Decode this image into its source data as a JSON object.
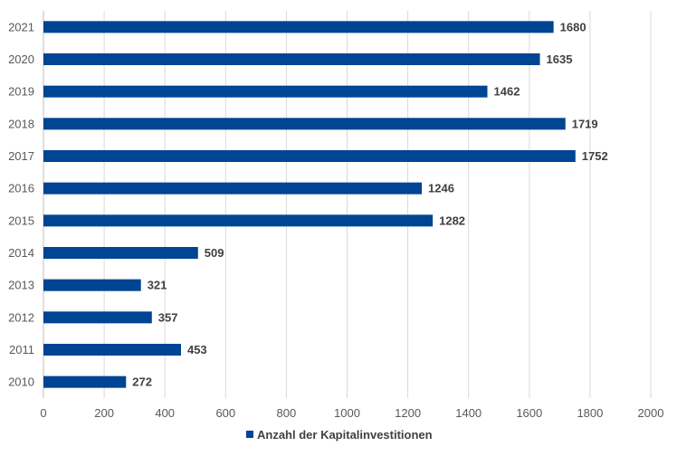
{
  "chart_data": {
    "type": "bar",
    "orientation": "horizontal",
    "categories": [
      "2010",
      "2011",
      "2012",
      "2013",
      "2014",
      "2015",
      "2016",
      "2017",
      "2018",
      "2019",
      "2020",
      "2021"
    ],
    "series": [
      {
        "name": "Anzahl der Kapitalinvestitionen",
        "values": [
          272,
          453,
          357,
          321,
          509,
          1282,
          1246,
          1752,
          1719,
          1462,
          1635,
          1680
        ],
        "color": "#004494"
      }
    ],
    "x_ticks": [
      "0",
      "200",
      "400",
      "600",
      "800",
      "1000",
      "1200",
      "1400",
      "1600",
      "1800",
      "2000"
    ],
    "xlim": [
      0,
      2000
    ],
    "grid": "vertical",
    "legend": "bottom-center",
    "data_labels": true
  }
}
